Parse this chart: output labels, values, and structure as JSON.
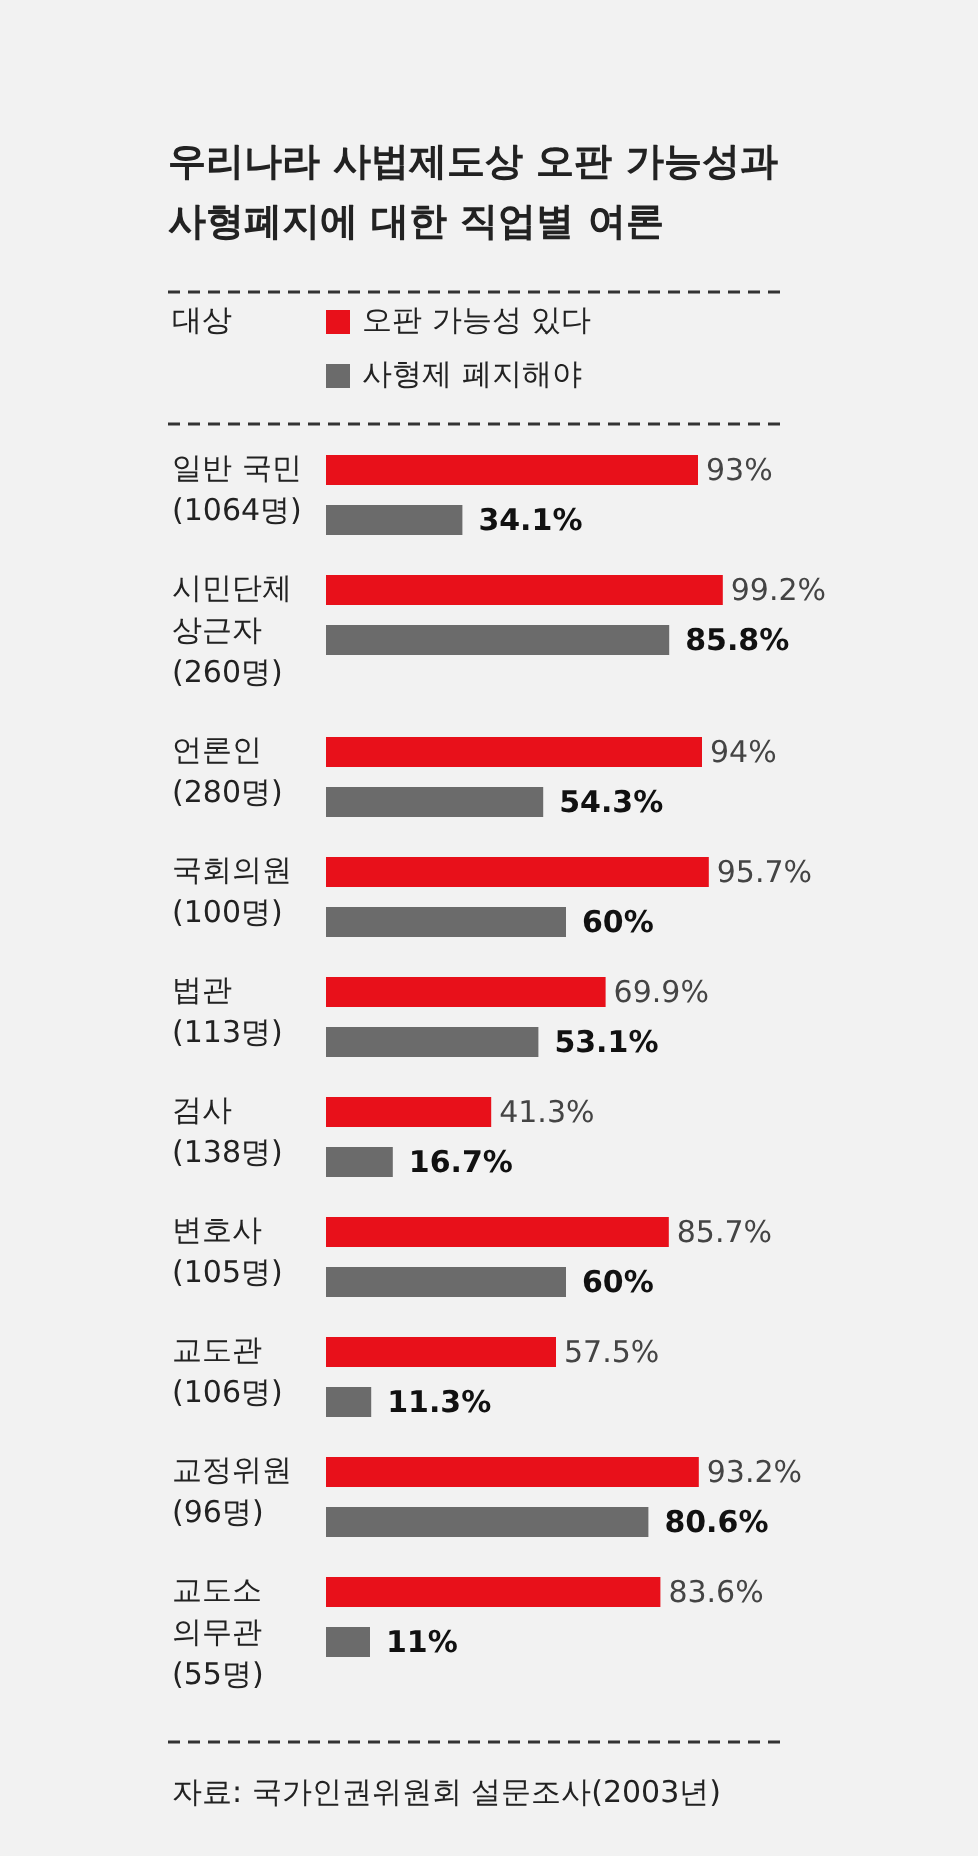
{
  "chart_data": {
    "type": "bar",
    "orientation": "horizontal",
    "title": "우리나라 사법제도상 오판 가능성과\n사형폐지에 대한 직업별 여론",
    "legend_title": "대상",
    "categories": [
      "일반 국민\n(1064명)",
      "시민단체\n상근자\n(260명)",
      "언론인\n(280명)",
      "국회의원\n(100명)",
      "법관\n(113명)",
      "검사\n(138명)",
      "변호사\n(105명)",
      "교도관\n(106명)",
      "교정위원\n(96명)",
      "교도소\n의무관\n(55명)"
    ],
    "series": [
      {
        "name": "오판 가능성 있다",
        "color": "#e8101a",
        "values": [
          93,
          99.2,
          94,
          95.7,
          69.9,
          41.3,
          85.7,
          57.5,
          93.2,
          83.6
        ],
        "value_labels": [
          "93%",
          "99.2%",
          "94%",
          "95.7%",
          "69.9%",
          "41.3%",
          "85.7%",
          "57.5%",
          "93.2%",
          "83.6%"
        ]
      },
      {
        "name": "사형제 폐지해야",
        "color": "#6b6b6b",
        "values": [
          34.1,
          85.8,
          54.3,
          60,
          53.1,
          16.7,
          60,
          11.3,
          80.6,
          11
        ],
        "value_labels": [
          "34.1%",
          "85.8%",
          "54.3%",
          "60%",
          "53.1%",
          "16.7%",
          "60%",
          "11.3%",
          "80.6%",
          "11%"
        ]
      }
    ],
    "xlim": [
      0,
      100
    ],
    "legend": "top",
    "annotations": [
      "자료: 국가인권위원회 설문조사(2003년)"
    ]
  }
}
